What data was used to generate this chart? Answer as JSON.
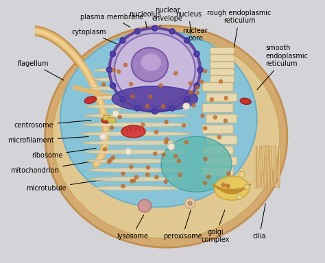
{
  "bg_color": "#d4d4d8",
  "cell_outer_color": "#d4a96a",
  "cell_outer_edge": "#c09050",
  "cell_inner_color": "#e8d4a0",
  "cell_inner_edge": "#c8a860",
  "cyto_color": "#88bcd0",
  "cyto_color2": "#7ab8c8",
  "nucleus_fill": "#c0b0d8",
  "nucleus_edge": "#8060a8",
  "nucleolus_fill": "#9878b8",
  "nucleolus_dark": "#7a5ca0",
  "er_cream": "#e8d8b0",
  "er_edge": "#c8b070",
  "mito_fill": "#c84040",
  "mito_edge": "#a02020",
  "golgi_color": "#e8c060",
  "golgi_edge": "#c09030",
  "lyso_fill": "#d09890",
  "perox_fill": "#e8c8a0",
  "flagellum_outer": "#c89050",
  "flagellum_inner": "#e8c888",
  "teal_pool": "#50a898",
  "label_fs": 7,
  "annotations": {
    "nucleolus": [
      0.415,
      0.965,
      0.44,
      0.79
    ],
    "nuclear_envelope": [
      0.505,
      0.965,
      0.47,
      0.91
    ],
    "nucleus": [
      0.59,
      0.965,
      0.6,
      0.88
    ],
    "nuclear_pore": [
      0.615,
      0.885,
      0.595,
      0.77
    ],
    "rough_endo": [
      0.79,
      0.955,
      0.76,
      0.78
    ],
    "smooth_endo": [
      0.895,
      0.8,
      0.855,
      0.66
    ],
    "plasma_membrane": [
      0.285,
      0.955,
      0.365,
      0.91
    ],
    "cytoplasm": [
      0.195,
      0.895,
      0.31,
      0.845
    ],
    "flagellum": [
      0.035,
      0.77,
      0.1,
      0.7
    ],
    "centrosome": [
      0.055,
      0.525,
      0.21,
      0.545
    ],
    "microfilament": [
      0.055,
      0.465,
      0.2,
      0.48
    ],
    "ribosome": [
      0.09,
      0.405,
      0.23,
      0.435
    ],
    "mitochondrion": [
      0.075,
      0.345,
      0.265,
      0.39
    ],
    "microtubule": [
      0.105,
      0.275,
      0.29,
      0.315
    ],
    "lysosome": [
      0.365,
      0.085,
      0.415,
      0.175
    ],
    "peroxisome": [
      0.565,
      0.085,
      0.6,
      0.195
    ],
    "golgi_complex": [
      0.695,
      0.085,
      0.735,
      0.195
    ],
    "cilia": [
      0.87,
      0.085,
      0.895,
      0.22
    ]
  }
}
